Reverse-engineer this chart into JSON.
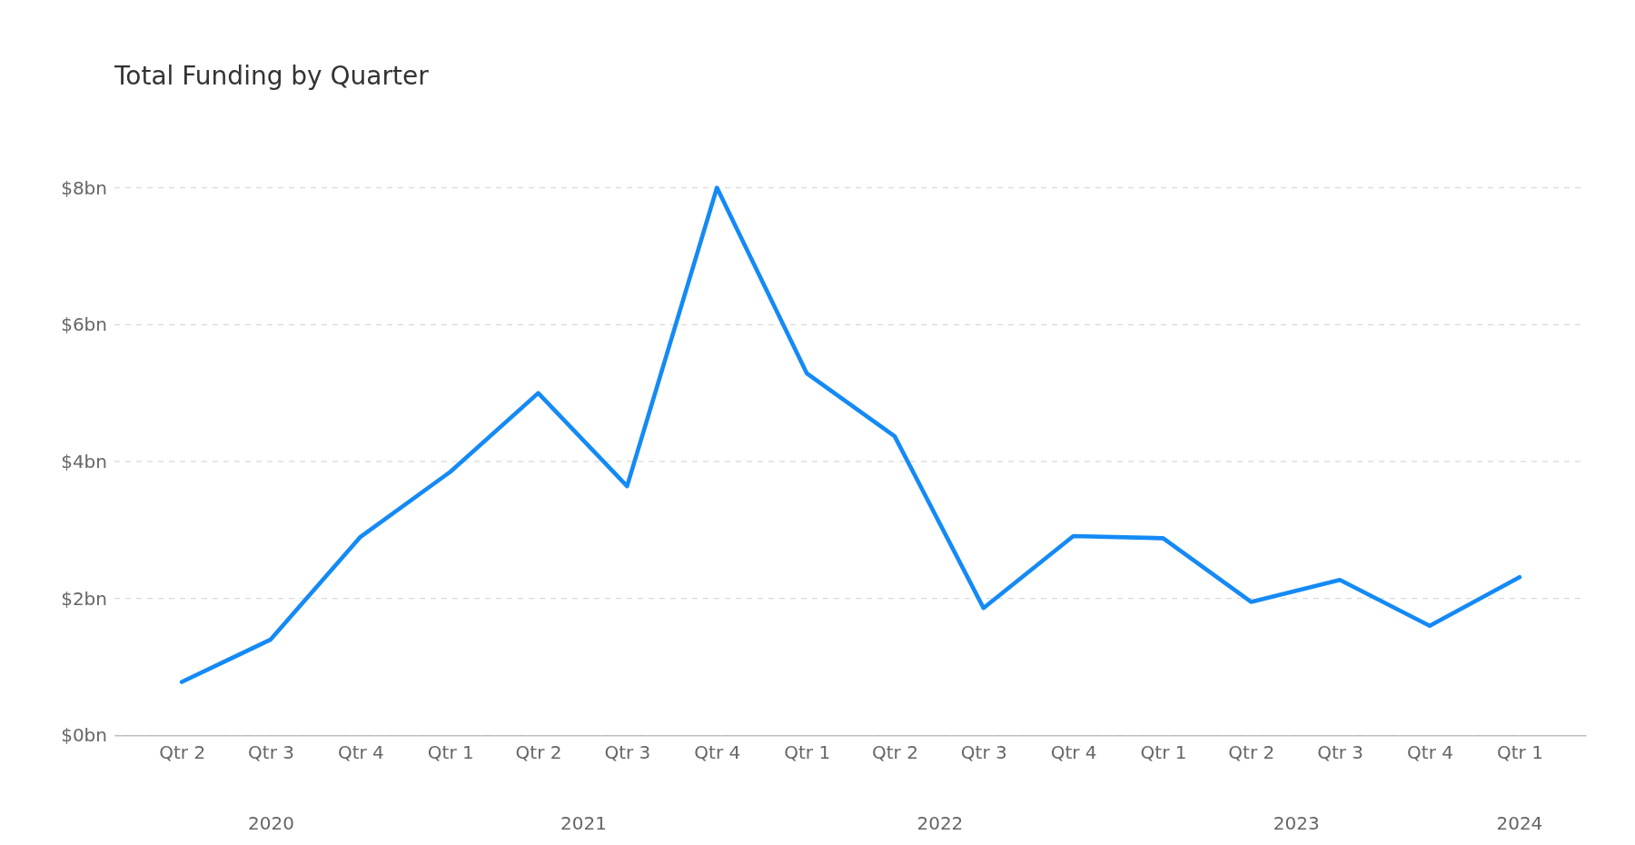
{
  "chart_data": {
    "type": "line",
    "title": "Total Funding by Quarter",
    "x": [
      "2020-04",
      "2020-07",
      "2020-10",
      "2021-01",
      "2021-04",
      "2021-07",
      "2021-10",
      "2022-01",
      "2022-04",
      "2022-07",
      "2022-10",
      "2023-01",
      "2023-04",
      "2023-07",
      "2023-10",
      "2024-01"
    ],
    "series": [
      {
        "color": "#148af5",
        "values": [
          0.78,
          1.4,
          2.9,
          3.85,
          5.0,
          3.64,
          8.0,
          5.29,
          4.37,
          1.86,
          2.91,
          2.88,
          1.95,
          2.27,
          1.6,
          2.31
        ]
      }
    ],
    "xlim": [
      "2020-01-23",
      "2024-03-09"
    ],
    "xticks": [
      {
        "value": "2020-04",
        "label": "Qtr 2"
      },
      {
        "value": "2020-07",
        "label": "Qtr 3"
      },
      {
        "value": "2020-10",
        "label": "Qtr 4"
      },
      {
        "value": "2021-01",
        "label": "Qtr 1"
      },
      {
        "value": "2021-04",
        "label": "Qtr 2"
      },
      {
        "value": "2021-07",
        "label": "Qtr 3"
      },
      {
        "value": "2021-10",
        "label": "Qtr 4"
      },
      {
        "value": "2022-01",
        "label": "Qtr 1"
      },
      {
        "value": "2022-04",
        "label": "Qtr 2"
      },
      {
        "value": "2022-07",
        "label": "Qtr 3"
      },
      {
        "value": "2022-10",
        "label": "Qtr 4"
      },
      {
        "value": "2023-01",
        "label": "Qtr 1"
      },
      {
        "value": "2023-04",
        "label": "Qtr 2"
      },
      {
        "value": "2023-07",
        "label": "Qtr 3"
      },
      {
        "value": "2023-10",
        "label": "Qtr 4"
      },
      {
        "value": "2024-01",
        "label": "Qtr 1"
      }
    ],
    "ylim": [
      0,
      8
    ],
    "yticks": [
      {
        "value": 0,
        "label": "$0bn"
      },
      {
        "value": 2,
        "label": "$2bn"
      },
      {
        "value": 4,
        "label": "$4bn"
      },
      {
        "value": 6,
        "label": "$6bn"
      },
      {
        "value": 8,
        "label": "$8bn"
      }
    ],
    "grid": "y",
    "marker": "none",
    "line_style": "solid",
    "annotations": [
      "2020",
      "2021",
      "2022",
      "2023",
      "2024"
    ]
  }
}
